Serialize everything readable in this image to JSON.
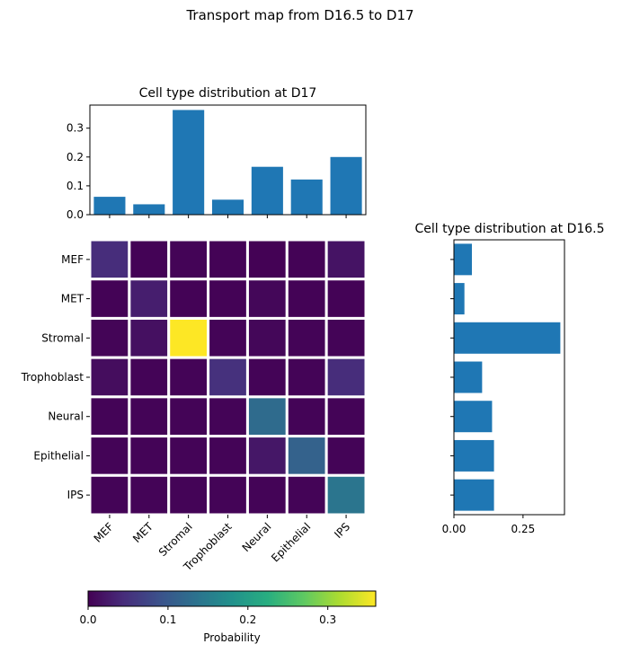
{
  "figure": {
    "suptitle": "Transport map from D16.5 to D17"
  },
  "categories": [
    "MEF",
    "MET",
    "Stromal",
    "Trophoblast",
    "Neural",
    "Epithelial",
    "IPS"
  ],
  "chart_data": [
    {
      "type": "bar",
      "title": "Cell type distribution at D17",
      "categories": [
        "MEF",
        "MET",
        "Stromal",
        "Trophoblast",
        "Neural",
        "Epithelial",
        "IPS"
      ],
      "values": [
        0.062,
        0.036,
        0.363,
        0.052,
        0.166,
        0.122,
        0.2
      ],
      "ylim": [
        0,
        0.38
      ],
      "yticks": [
        0.0,
        0.1,
        0.2,
        0.3
      ],
      "ytick_labels": [
        "0.0",
        "0.1",
        "0.2",
        "0.3"
      ],
      "color": "#1f77b4",
      "grid": false
    },
    {
      "type": "bar",
      "orientation": "horizontal",
      "title": "Cell type distribution at D16.5",
      "categories": [
        "MEF",
        "MET",
        "Stromal",
        "Trophoblast",
        "Neural",
        "Epithelial",
        "IPS"
      ],
      "values": [
        0.065,
        0.038,
        0.385,
        0.102,
        0.138,
        0.145,
        0.145
      ],
      "xlim": [
        0,
        0.4
      ],
      "xticks": [
        0.0,
        0.25
      ],
      "xtick_labels": [
        "0.00",
        "0.25"
      ],
      "color": "#1f77b4",
      "grid": false
    },
    {
      "type": "heatmap",
      "rows": [
        "MEF",
        "MET",
        "Stromal",
        "Trophoblast",
        "Neural",
        "Epithelial",
        "IPS"
      ],
      "columns": [
        "MEF",
        "MET",
        "Stromal",
        "Trophoblast",
        "Neural",
        "Epithelial",
        "IPS"
      ],
      "values": [
        [
          0.045,
          0.002,
          0.003,
          0.002,
          0.001,
          0.002,
          0.018
        ],
        [
          0.002,
          0.03,
          0.002,
          0.002,
          0.006,
          0.002,
          0.002
        ],
        [
          0.004,
          0.015,
          0.36,
          0.003,
          0.006,
          0.003,
          0.003
        ],
        [
          0.012,
          0.003,
          0.003,
          0.05,
          0.003,
          0.003,
          0.045
        ],
        [
          0.003,
          0.003,
          0.003,
          0.003,
          0.125,
          0.003,
          0.003
        ],
        [
          0.003,
          0.003,
          0.003,
          0.003,
          0.022,
          0.112,
          0.003
        ],
        [
          0.003,
          0.003,
          0.003,
          0.003,
          0.003,
          0.003,
          0.14
        ]
      ],
      "colormap": "viridis",
      "vmin": 0.0,
      "vmax": 0.36,
      "colorbar": {
        "label": "Probability",
        "ticks": [
          0.0,
          0.1,
          0.2,
          0.3
        ],
        "tick_labels": [
          "0.0",
          "0.1",
          "0.2",
          "0.3"
        ],
        "orientation": "horizontal"
      }
    }
  ]
}
